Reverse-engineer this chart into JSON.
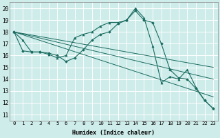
{
  "xlabel": "Humidex (Indice chaleur)",
  "bg_color": "#ceecea",
  "line_color": "#1a6b60",
  "grid_color": "#b8dbd8",
  "xlim": [
    -0.5,
    23.5
  ],
  "ylim": [
    10.5,
    20.5
  ],
  "yticks": [
    11,
    12,
    13,
    14,
    15,
    16,
    17,
    18,
    19,
    20
  ],
  "xticks": [
    0,
    1,
    2,
    3,
    4,
    5,
    6,
    7,
    8,
    9,
    10,
    11,
    12,
    13,
    14,
    15,
    16,
    17,
    18,
    19,
    20,
    21,
    22,
    23
  ],
  "series1_x": [
    0,
    1,
    2,
    3,
    4,
    5,
    6,
    7,
    8,
    9,
    10,
    11,
    12,
    13,
    14,
    15,
    16,
    17,
    18,
    19,
    20,
    21,
    22,
    23
  ],
  "series1_y": [
    18.0,
    17.3,
    16.3,
    16.3,
    16.1,
    15.8,
    16.0,
    17.5,
    17.8,
    18.0,
    18.5,
    18.8,
    18.8,
    19.0,
    20.0,
    19.2,
    16.8,
    13.7,
    14.2,
    14.0,
    14.8,
    13.3,
    12.2,
    11.5
  ],
  "series2_x": [
    0,
    1,
    2,
    3,
    4,
    5,
    6,
    7,
    8,
    9,
    10,
    11,
    12,
    13,
    14,
    15,
    16,
    17,
    18,
    19,
    20,
    21,
    22,
    23
  ],
  "series2_y": [
    18.0,
    16.4,
    16.3,
    16.3,
    16.2,
    16.0,
    15.5,
    15.8,
    16.5,
    17.3,
    17.8,
    18.0,
    18.7,
    19.0,
    19.8,
    19.0,
    18.8,
    17.0,
    14.8,
    14.1,
    14.0,
    13.2,
    12.2,
    11.5
  ],
  "line3_x": [
    0,
    23
  ],
  "line3_y": [
    18.0,
    15.0
  ],
  "line4_x": [
    0,
    23
  ],
  "line4_y": [
    18.0,
    14.0
  ],
  "line5_x": [
    0,
    23
  ],
  "line5_y": [
    18.0,
    12.5
  ]
}
